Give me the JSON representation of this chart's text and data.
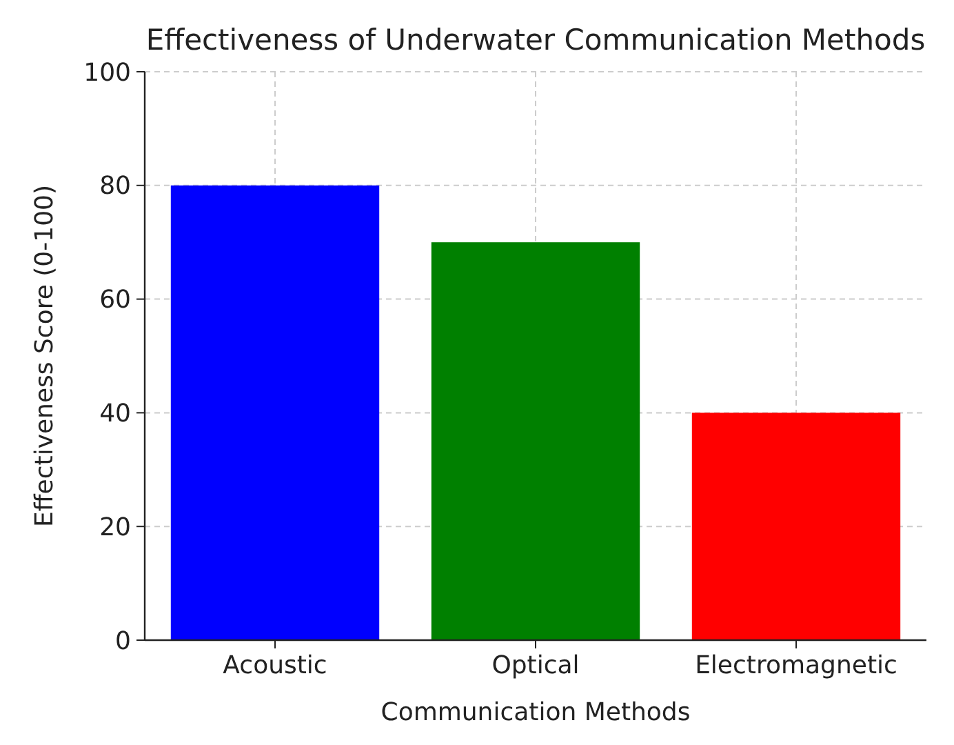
{
  "chart_data": {
    "type": "bar",
    "title": "Effectiveness of Underwater Communication Methods",
    "xlabel": "Communication Methods",
    "ylabel": "Effectiveness Score (0-100)",
    "categories": [
      "Acoustic",
      "Optical",
      "Electromagnetic"
    ],
    "values": [
      80,
      70,
      40
    ],
    "colors": [
      "#0000ff",
      "#008000",
      "#ff0000"
    ],
    "ylim": [
      0,
      100
    ],
    "yticks": [
      0,
      20,
      40,
      60,
      80,
      100
    ],
    "grid": true
  }
}
